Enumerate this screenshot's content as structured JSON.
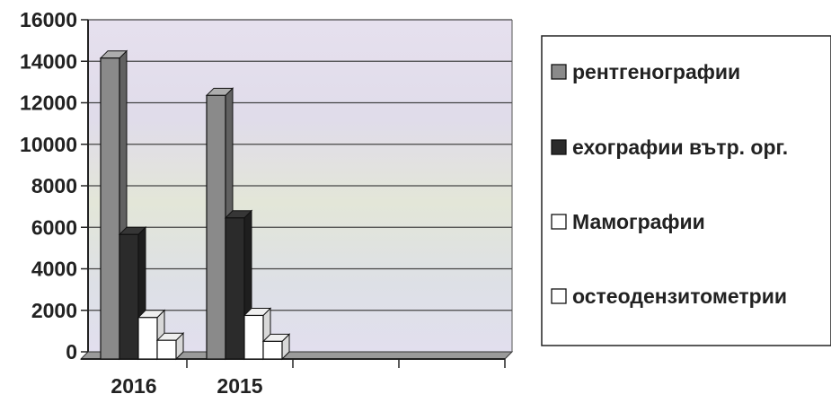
{
  "chart_data": {
    "type": "bar",
    "style": "3d-clustered",
    "categories": [
      "2016",
      "2015"
    ],
    "series": [
      {
        "name": "рентгенографии",
        "values": [
          14500,
          12700
        ],
        "color": "#8a8a8a"
      },
      {
        "name": "ехографии вътр. орг.",
        "values": [
          6000,
          6800
        ],
        "color": "#2b2b2b"
      },
      {
        "name": "Мамографии",
        "values": [
          2000,
          2100
        ],
        "color": "#ffffff"
      },
      {
        "name": "остеодензитометрии",
        "values": [
          900,
          850
        ],
        "color": "#ffffff"
      }
    ],
    "yticks": [
      "16000",
      "14000",
      "12000",
      "10000",
      "8000",
      "6000",
      "4000",
      "2000",
      "0"
    ],
    "ylim": [
      0,
      16000
    ],
    "grid": true,
    "legend_position": "right",
    "title": "",
    "xlabel": "",
    "ylabel": ""
  }
}
